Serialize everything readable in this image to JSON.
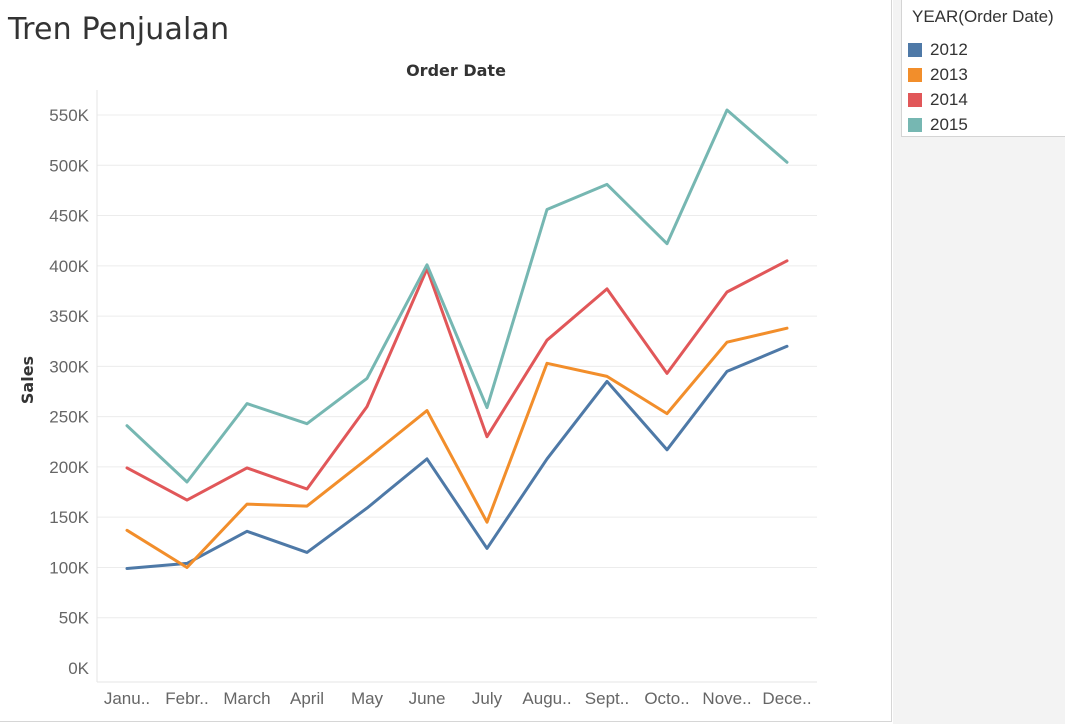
{
  "title": "Tren Penjualan",
  "chart_data": {
    "type": "line",
    "title": "Tren Penjualan",
    "xlabel": "Order Date",
    "ylabel": "Sales",
    "categories": [
      "Janu..",
      "Febr..",
      "March",
      "April",
      "May",
      "June",
      "July",
      "Augu..",
      "Sept..",
      "Octo..",
      "Nove..",
      "Dece.."
    ],
    "y_ticks": [
      0,
      50000,
      100000,
      150000,
      200000,
      250000,
      300000,
      350000,
      400000,
      450000,
      500000,
      550000
    ],
    "y_tick_labels": [
      "0K",
      "50K",
      "100K",
      "150K",
      "200K",
      "250K",
      "300K",
      "350K",
      "400K",
      "450K",
      "500K",
      "550K"
    ],
    "ylim": [
      0,
      560000
    ],
    "grid": true,
    "legend_title": "YEAR(Order Date)",
    "legend_position": "right",
    "series": [
      {
        "name": "2012",
        "color": "#4e79a7",
        "values": [
          99000,
          104000,
          136000,
          115000,
          159000,
          208000,
          119000,
          208000,
          285000,
          217000,
          295000,
          320000
        ]
      },
      {
        "name": "2013",
        "color": "#f28e2b",
        "values": [
          137000,
          100000,
          163000,
          161000,
          208000,
          256000,
          145000,
          303000,
          290000,
          253000,
          324000,
          338000
        ]
      },
      {
        "name": "2014",
        "color": "#e15759",
        "values": [
          199000,
          167000,
          199000,
          178000,
          260000,
          397000,
          230000,
          326000,
          377000,
          293000,
          374000,
          405000
        ]
      },
      {
        "name": "2015",
        "color": "#76b7b2",
        "values": [
          241000,
          185000,
          263000,
          243000,
          288000,
          401000,
          259000,
          456000,
          481000,
          422000,
          555000,
          503000
        ]
      }
    ]
  }
}
